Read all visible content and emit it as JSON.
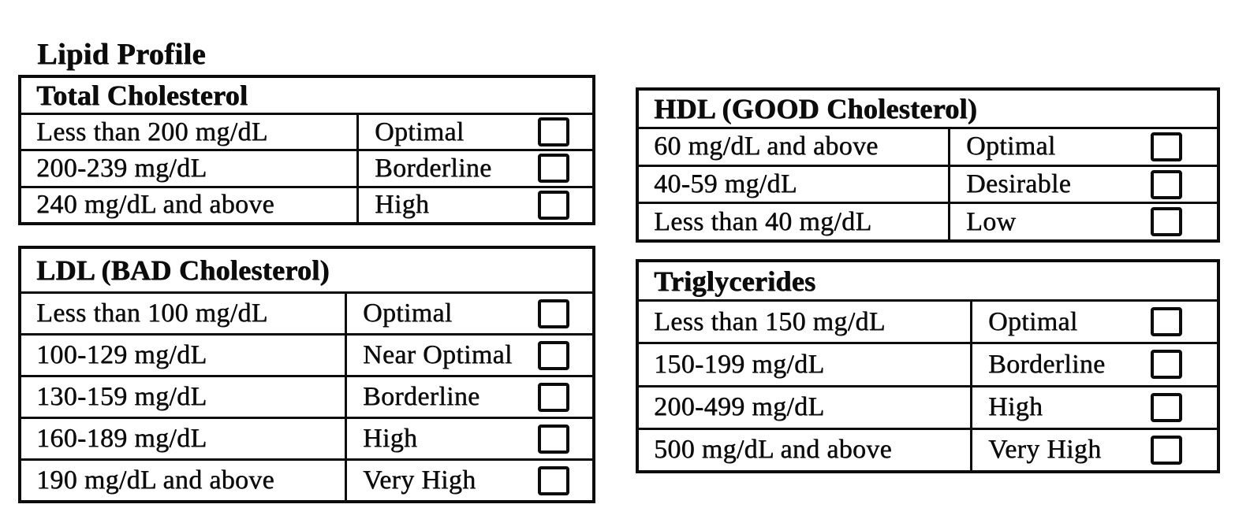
{
  "page": {
    "title": "Lipid Profile"
  },
  "colors": {
    "ink": "#0c0c0c",
    "paper": "#ffffff"
  },
  "tables": [
    {
      "id": "total-cholesterol",
      "header": "Total Cholesterol",
      "rows": [
        {
          "range": "Less than 200 mg/dL",
          "category": "Optimal",
          "checked": false
        },
        {
          "range": "200-239 mg/dL",
          "category": "Borderline",
          "checked": false
        },
        {
          "range": "240 mg/dL and above",
          "category": "High",
          "checked": false
        }
      ]
    },
    {
      "id": "hdl-good-cholesterol",
      "header": "HDL (GOOD Cholesterol)",
      "rows": [
        {
          "range": "60 mg/dL and above",
          "category": "Optimal",
          "checked": false
        },
        {
          "range": "40-59 mg/dL",
          "category": "Desirable",
          "checked": false
        },
        {
          "range": "Less than 40 mg/dL",
          "category": "Low",
          "checked": false
        }
      ]
    },
    {
      "id": "ldl-bad-cholesterol",
      "header": "LDL (BAD Cholesterol)",
      "rows": [
        {
          "range": "Less than 100 mg/dL",
          "category": "Optimal",
          "checked": false
        },
        {
          "range": "100-129 mg/dL",
          "category": "Near Optimal",
          "checked": false
        },
        {
          "range": "130-159 mg/dL",
          "category": "Borderline",
          "checked": false
        },
        {
          "range": "160-189 mg/dL",
          "category": "High",
          "checked": false
        },
        {
          "range": "190 mg/dL and above",
          "category": "Very High",
          "checked": false
        }
      ]
    },
    {
      "id": "triglycerides",
      "header": "Triglycerides",
      "rows": [
        {
          "range": "Less than 150 mg/dL",
          "category": "Optimal",
          "checked": false
        },
        {
          "range": "150-199 mg/dL",
          "category": "Borderline",
          "checked": false
        },
        {
          "range": "200-499 mg/dL",
          "category": "High",
          "checked": false
        },
        {
          "range": "500 mg/dL and above",
          "category": "Very High",
          "checked": false
        }
      ]
    }
  ]
}
